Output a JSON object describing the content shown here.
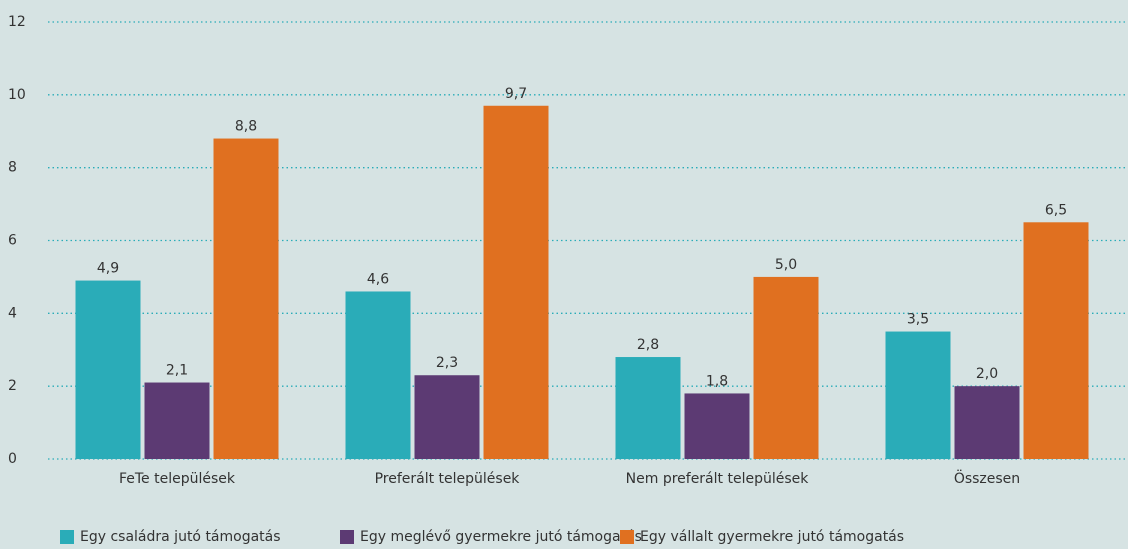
{
  "chart_data": {
    "type": "bar",
    "categories": [
      "FeTe települések",
      "Preferált települések",
      "Nem preferált települések",
      "Összesen"
    ],
    "series": [
      {
        "name": "Egy családra jutó támogatás",
        "color": "#2aacb8",
        "values": [
          4.9,
          4.6,
          2.8,
          3.5
        ],
        "value_labels": [
          "4,9",
          "4,6",
          "2,8",
          "3,5"
        ]
      },
      {
        "name": "Egy meglévő gyermekre jutó támogatás",
        "color": "#5c3a73",
        "values": [
          2.1,
          2.3,
          1.8,
          2.0
        ],
        "value_labels": [
          "2,1",
          "2,3",
          "1,8",
          "2,0"
        ]
      },
      {
        "name": "Egy vállalt gyermekre jutó támogatás",
        "color": "#e07020",
        "values": [
          8.8,
          9.7,
          5.0,
          6.5
        ],
        "value_labels": [
          "8,8",
          "9,7",
          "5,0",
          "6,5"
        ]
      }
    ],
    "ylim": [
      0,
      12
    ],
    "yticks": [
      0,
      2,
      4,
      6,
      8,
      10,
      12
    ],
    "grid": true,
    "legend": "bottom"
  }
}
